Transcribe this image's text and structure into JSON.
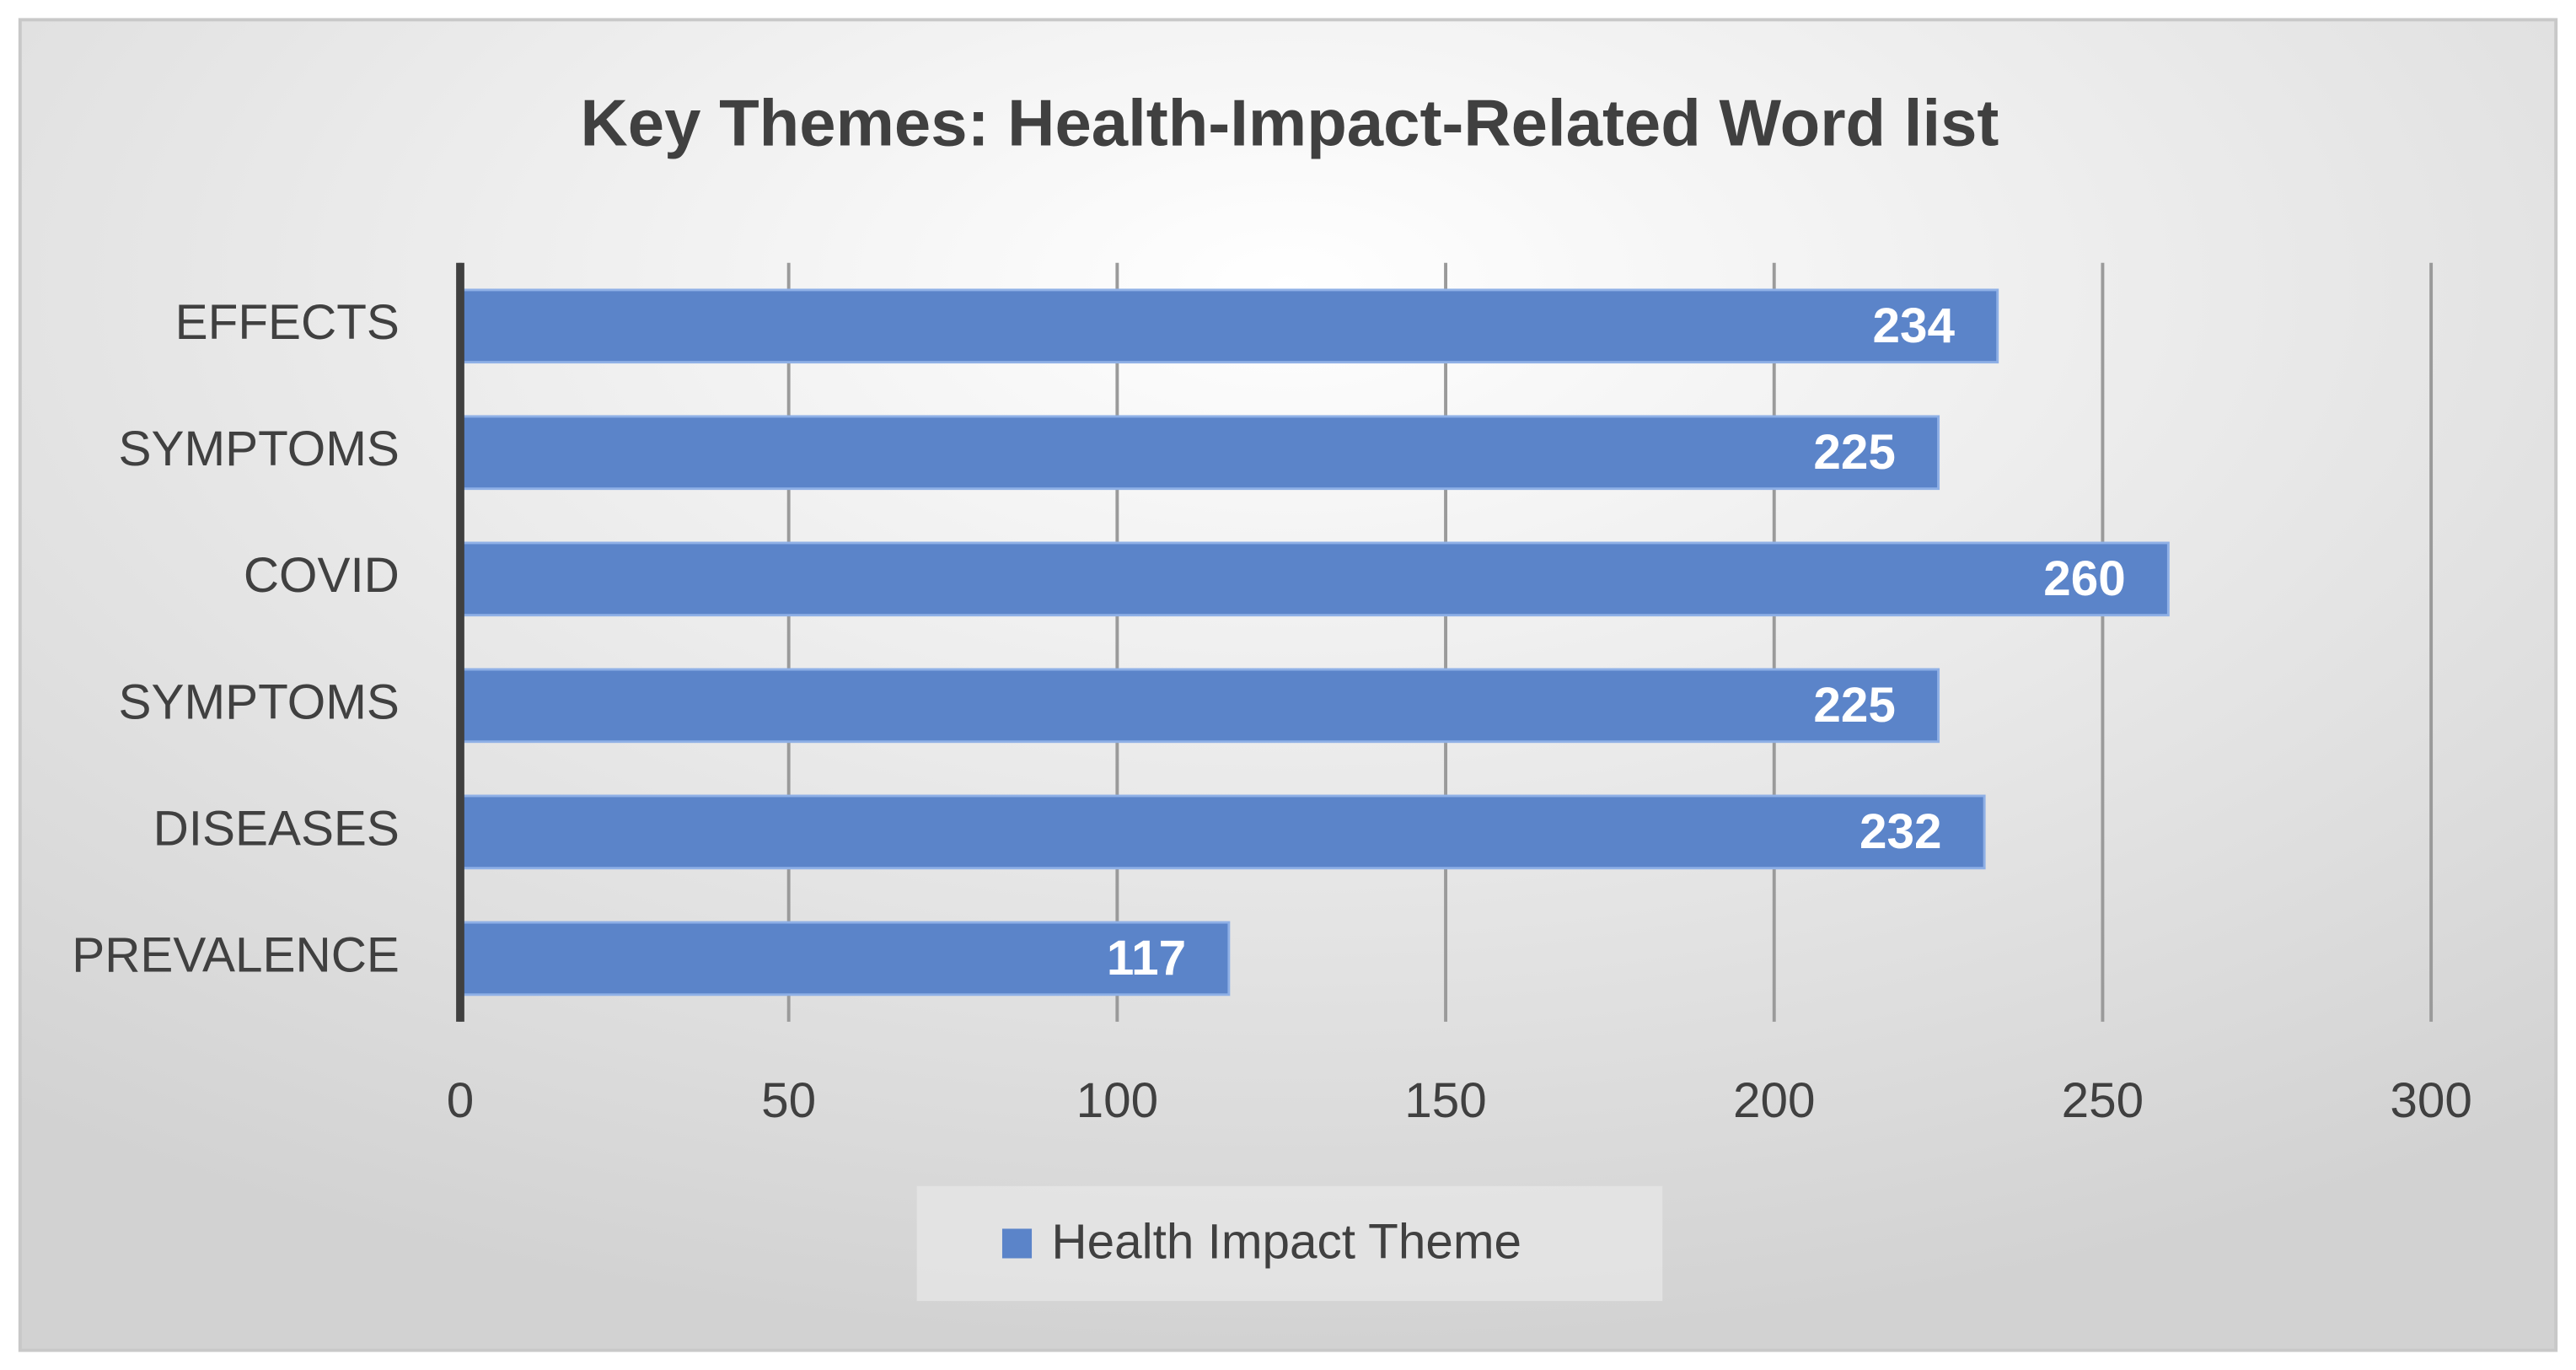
{
  "chart_data": {
    "type": "bar",
    "orientation": "horizontal",
    "title": "Key Themes: Health-Impact-Related Word list",
    "categories": [
      "EFFECTS",
      "SYMPTOMS",
      "COVID",
      "SYMPTOMS",
      "DISEASES",
      "PREVALENCE"
    ],
    "series": [
      {
        "name": "Health Impact Theme",
        "color": "#5b84c9",
        "values": [
          234,
          225,
          260,
          225,
          232,
          117
        ]
      }
    ],
    "xlim": [
      0,
      300
    ],
    "xticks": [
      0,
      50,
      100,
      150,
      200,
      250,
      300
    ],
    "grid": true,
    "legend": "bottom"
  }
}
